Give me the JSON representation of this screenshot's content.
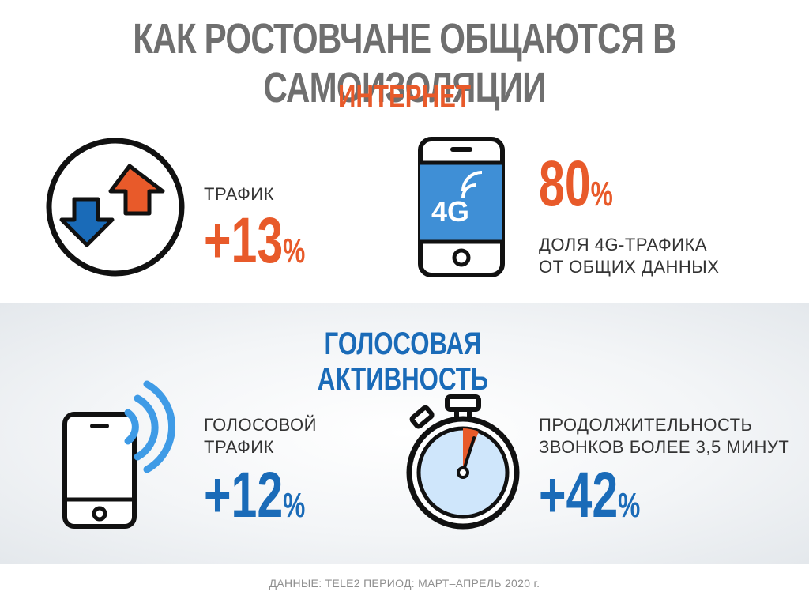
{
  "title": "КАК РОСТОВЧАНЕ ОБЩАЮТСЯ В САМОИЗОЛЯЦИИ",
  "internet": {
    "heading": "ИНТЕРНЕТ",
    "traffic": {
      "label": "ТРАФИК",
      "sign": "+",
      "value": "13",
      "unit": "%"
    },
    "share4g": {
      "value": "80",
      "unit": "%",
      "label": "ДОЛЯ 4G-ТРАФИКА\nОТ ОБЩИХ ДАННЫХ",
      "badge": "4G"
    }
  },
  "voice": {
    "heading": "ГОЛОСОВАЯ АКТИВНОСТЬ",
    "traffic": {
      "label": "ГОЛОСОВОЙ\nТРАФИК",
      "sign": "+",
      "value": "12",
      "unit": "%"
    },
    "duration": {
      "label": "ПРОДОЛЖИТЕЛЬНОСТЬ\nЗВОНКОВ БОЛЕЕ 3,5 МИНУТ",
      "sign": "+",
      "value": "42",
      "unit": "%"
    }
  },
  "footer": "ДАННЫЕ: TELE2 ПЕРИОД: МАРТ–АПРЕЛЬ 2020 г.",
  "colors": {
    "orange": "#e85a2a",
    "blue": "#1a6bb8",
    "gray": "#6f6f6f"
  }
}
